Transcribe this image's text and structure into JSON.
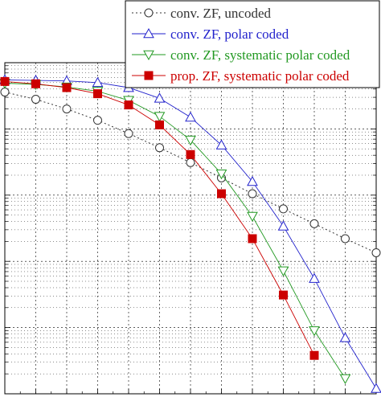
{
  "chart_data": {
    "type": "line",
    "title": "",
    "xlabel": "",
    "ylabel": "",
    "xlim": [
      0,
      24
    ],
    "x_ticks_major": [
      0,
      2,
      4,
      6,
      8,
      10,
      12,
      14,
      16,
      18,
      20,
      22,
      24
    ],
    "ylog": true,
    "ylim": [
      1e-05,
      1
    ],
    "y_decades": [
      1,
      0.1,
      0.01,
      0.001,
      0.0001,
      1e-05
    ],
    "grid": true,
    "legend_position": "top-right",
    "series": [
      {
        "name": "conv. ZF, uncoded",
        "color": "#333333",
        "line": "dotted",
        "marker": "circle-open",
        "x": [
          0,
          2,
          4,
          6,
          8,
          10,
          12,
          14,
          16,
          18,
          20,
          22,
          24
        ],
        "y": [
          0.36,
          0.28,
          0.2,
          0.135,
          0.085,
          0.052,
          0.031,
          0.0182,
          0.0105,
          0.0062,
          0.0037,
          0.0022,
          0.00135
        ]
      },
      {
        "name": "conv. ZF, polar coded",
        "color": "#2222cc",
        "line": "solid",
        "marker": "triangle-up-open",
        "x": [
          0,
          2,
          4,
          6,
          8,
          10,
          12,
          14,
          16,
          18,
          20,
          22,
          24
        ],
        "y": [
          0.55,
          0.54,
          0.53,
          0.5,
          0.42,
          0.29,
          0.15,
          0.057,
          0.016,
          0.0034,
          0.00055,
          7e-05,
          1.2e-05
        ]
      },
      {
        "name": "conv. ZF, systematic polar coded",
        "color": "#229922",
        "line": "solid",
        "marker": "triangle-down-open",
        "x": [
          0,
          2,
          4,
          6,
          8,
          10,
          12,
          14,
          16,
          18,
          20,
          22
        ],
        "y": [
          0.49,
          0.47,
          0.43,
          0.37,
          0.27,
          0.155,
          0.068,
          0.021,
          0.0048,
          0.00072,
          9e-05,
          1.7e-05
        ]
      },
      {
        "name": "prop. ZF, systematic polar coded",
        "color": "#cc0000",
        "line": "solid",
        "marker": "square-filled",
        "x": [
          0,
          2,
          4,
          6,
          8,
          10,
          12,
          14,
          16,
          18,
          20
        ],
        "y": [
          0.52,
          0.48,
          0.42,
          0.34,
          0.23,
          0.115,
          0.041,
          0.0105,
          0.0022,
          0.00031,
          3.8e-05
        ]
      }
    ]
  }
}
